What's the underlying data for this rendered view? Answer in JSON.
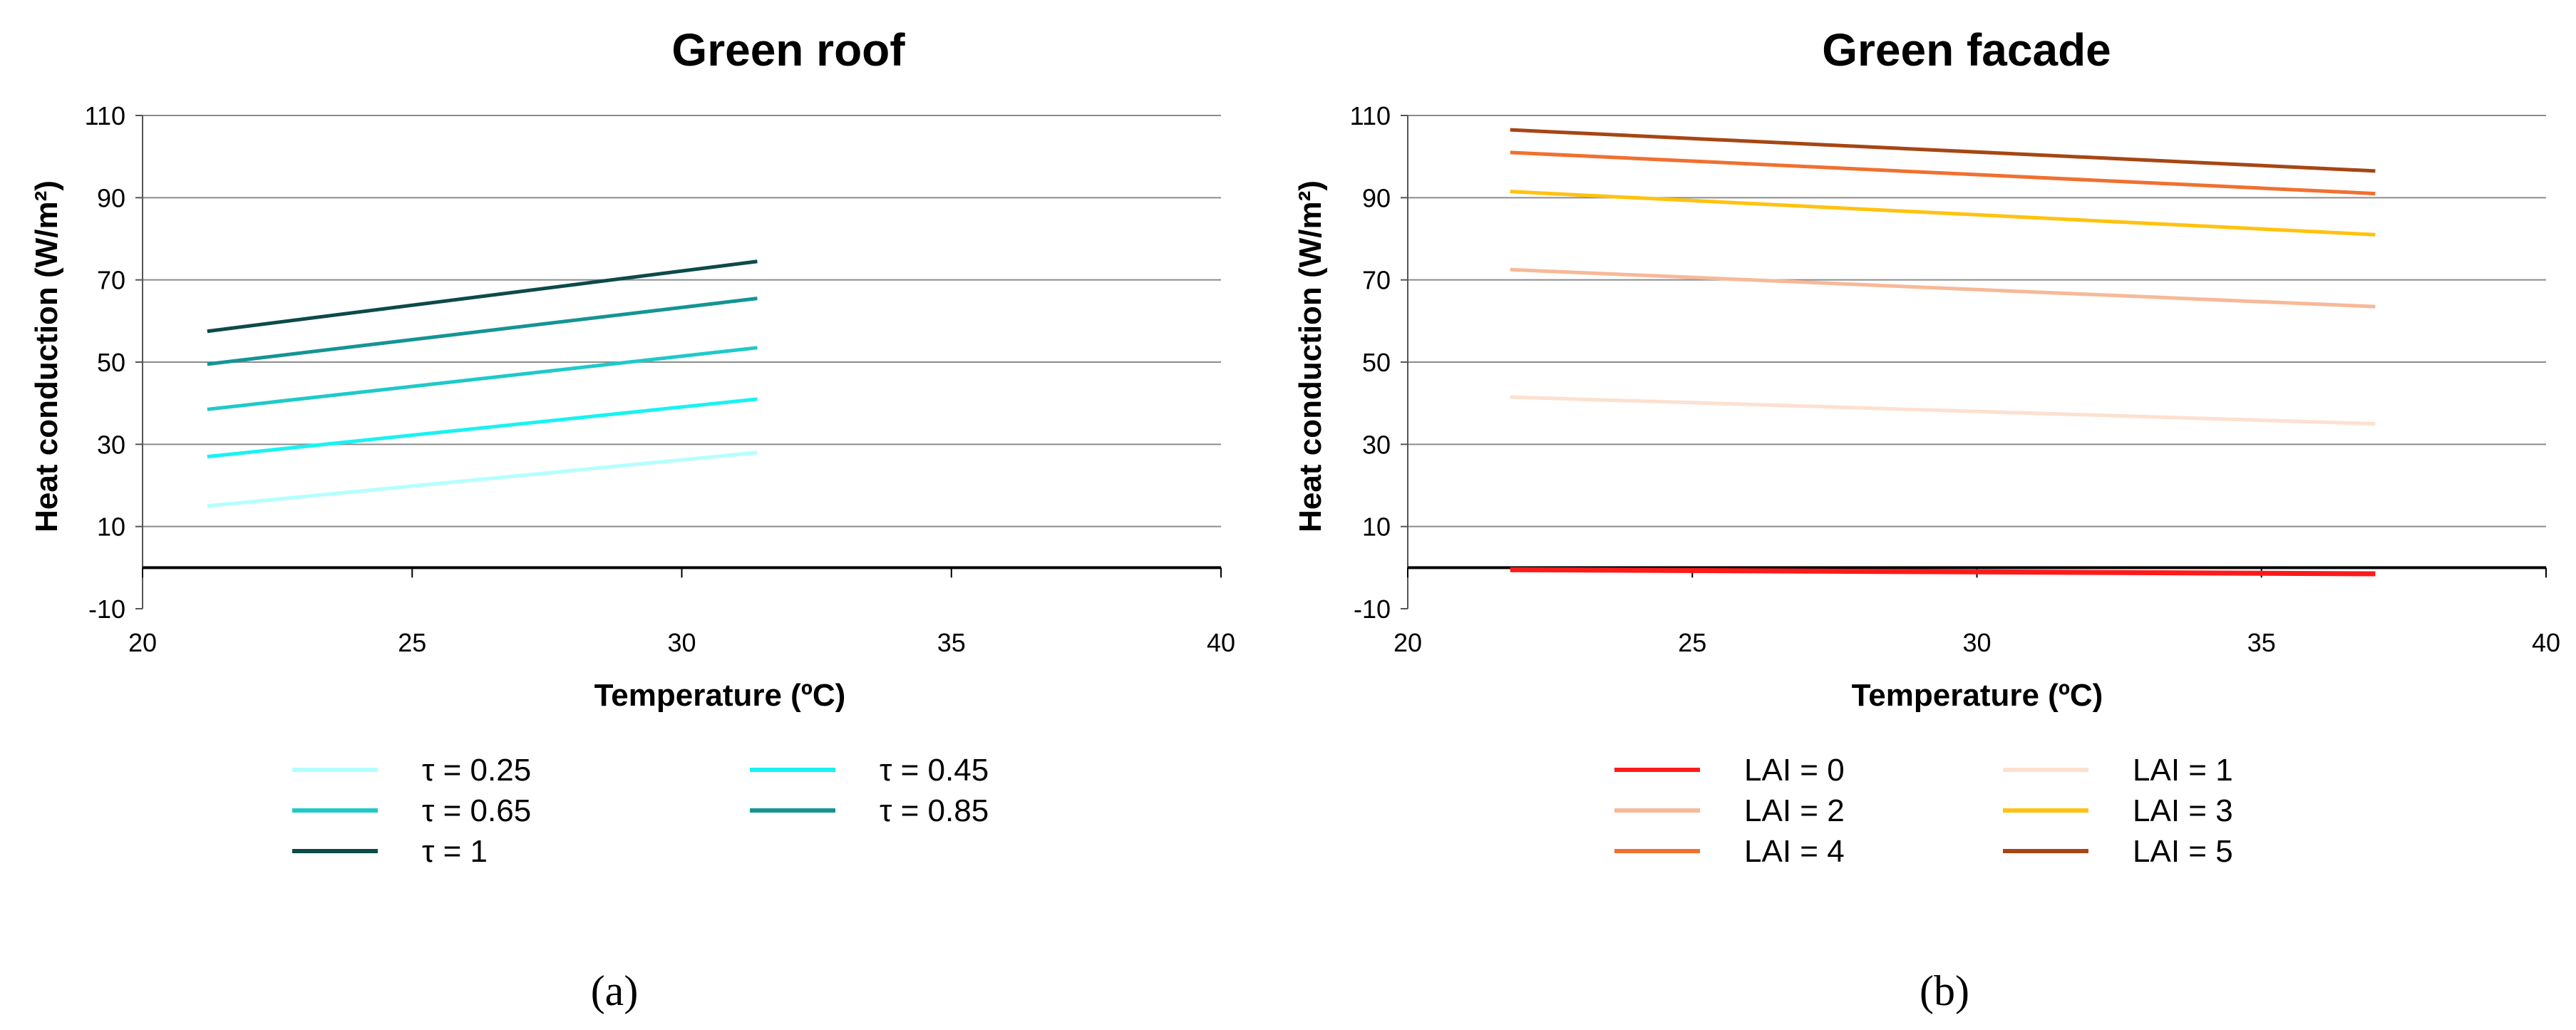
{
  "chart_data": [
    {
      "type": "line",
      "title": "Green roof",
      "xlabel": "Temperature (ºC)",
      "ylabel": "Heat conduction (W/m²)",
      "xlim": [
        20,
        40
      ],
      "ylim": [
        -10,
        110
      ],
      "xticks": [
        "20",
        "25",
        "30",
        "35",
        "40"
      ],
      "yticks": [
        "-10",
        "10",
        "30",
        "50",
        "70",
        "90",
        "110"
      ],
      "caption": "(a)",
      "series": [
        {
          "name": "τ = 0.25",
          "color": "#b3ffff",
          "x": [
            21.2,
            31.4
          ],
          "y": [
            15,
            28
          ]
        },
        {
          "name": "τ = 0.45",
          "color": "#19f2f2",
          "x": [
            21.2,
            31.4
          ],
          "y": [
            27,
            41
          ]
        },
        {
          "name": "τ = 0.65",
          "color": "#1fc9c9",
          "x": [
            21.2,
            31.4
          ],
          "y": [
            38.5,
            53.5
          ]
        },
        {
          "name": "τ = 0.85",
          "color": "#159494",
          "x": [
            21.2,
            31.4
          ],
          "y": [
            49.5,
            65.5
          ]
        },
        {
          "name": "τ = 1",
          "color": "#0d4a4a",
          "x": [
            21.2,
            31.4
          ],
          "y": [
            57.5,
            74.5
          ]
        }
      ]
    },
    {
      "type": "line",
      "title": "Green facade",
      "xlabel": "Temperature (ºC)",
      "ylabel": "Heat conduction (W/m²)",
      "xlim": [
        20,
        40
      ],
      "ylim": [
        -10,
        110
      ],
      "xticks": [
        "20",
        "25",
        "30",
        "35",
        "40"
      ],
      "yticks": [
        "-10",
        "10",
        "30",
        "50",
        "70",
        "90",
        "110"
      ],
      "caption": "(b)",
      "series": [
        {
          "name": "LAI = 0",
          "color": "#ff1a1a",
          "x": [
            21.8,
            37
          ],
          "y": [
            -0.5,
            -1.5
          ]
        },
        {
          "name": "LAI = 1",
          "color": "#fde0d0",
          "x": [
            21.8,
            37
          ],
          "y": [
            41.5,
            35
          ]
        },
        {
          "name": "LAI = 2",
          "color": "#f7b998",
          "x": [
            21.8,
            37
          ],
          "y": [
            72.5,
            63.5
          ]
        },
        {
          "name": "LAI = 3",
          "color": "#ffc20e",
          "x": [
            21.8,
            37
          ],
          "y": [
            91.5,
            81
          ]
        },
        {
          "name": "LAI = 4",
          "color": "#f07030",
          "x": [
            21.8,
            37
          ],
          "y": [
            101,
            91
          ]
        },
        {
          "name": "LAI = 5",
          "color": "#a64614",
          "x": [
            21.8,
            37
          ],
          "y": [
            106.5,
            96.5
          ]
        }
      ]
    }
  ]
}
